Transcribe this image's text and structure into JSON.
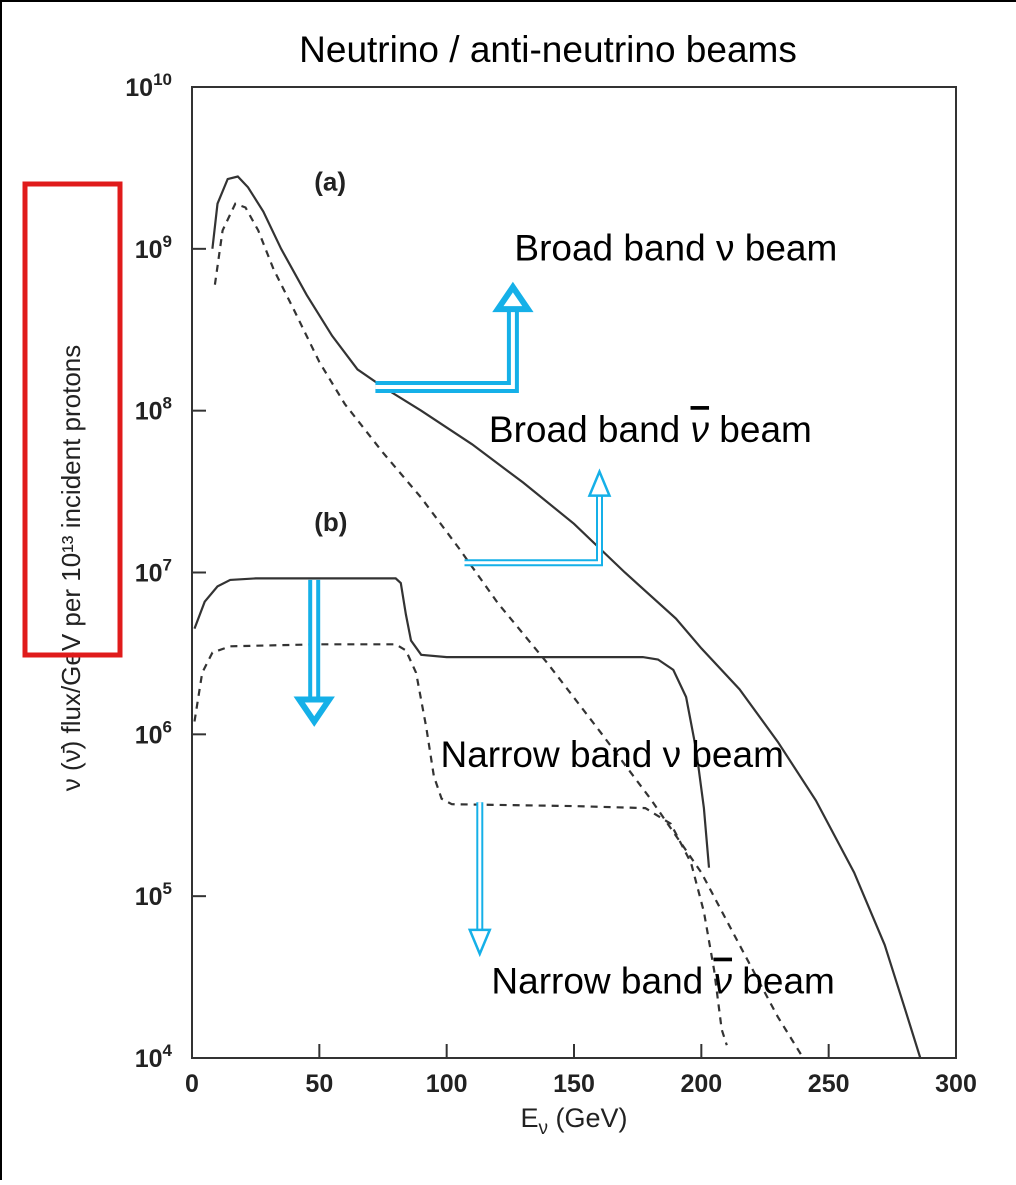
{
  "chart_data": {
    "type": "line",
    "title": "Neutrino / anti-neutrino beams",
    "xlabel": "E",
    "xlabel_sub": "ν",
    "xlabel_unit": " (GeV)",
    "ylabel": "ν (ν̄) flux/GeV per 10¹³ incident protons",
    "xlim": [
      0,
      300
    ],
    "ylim_log10": [
      4,
      10
    ],
    "yscale": "log",
    "grid": false,
    "x_ticks": [
      "0",
      "50",
      "100",
      "150",
      "200",
      "250",
      "300"
    ],
    "y_ticks": [
      {
        "base": "10",
        "exp": "4"
      },
      {
        "base": "10",
        "exp": "5"
      },
      {
        "base": "10",
        "exp": "6"
      },
      {
        "base": "10",
        "exp": "7"
      },
      {
        "base": "10",
        "exp": "8"
      },
      {
        "base": "10",
        "exp": "9"
      },
      {
        "base": "10",
        "exp": "10"
      }
    ],
    "panel_labels": [
      {
        "text": "(a)",
        "x": 48,
        "y": 2300000000.0
      },
      {
        "text": "(b)",
        "x": 48,
        "y": 18000000.0
      }
    ],
    "series": [
      {
        "style": "solid",
        "color": "#333333",
        "points": [
          [
            8,
            1000000000.0
          ],
          [
            10,
            1900000000.0
          ],
          [
            14,
            2700000000.0
          ],
          [
            18,
            2800000000.0
          ],
          [
            22,
            2400000000.0
          ],
          [
            28,
            1700000000.0
          ],
          [
            35,
            1000000000.0
          ],
          [
            45,
            520000000.0
          ],
          [
            55,
            290000000.0
          ],
          [
            65,
            180000000.0
          ],
          [
            75,
            140000000.0
          ],
          [
            90,
            100000000.0
          ],
          [
            110,
            62000000.0
          ],
          [
            130,
            36000000.0
          ],
          [
            150,
            20000000.0
          ],
          [
            170,
            10000000.0
          ],
          [
            190,
            5200000.0
          ],
          [
            200,
            3400000.0
          ],
          [
            215,
            1900000.0
          ],
          [
            230,
            900000.0
          ],
          [
            245,
            390000.0
          ],
          [
            260,
            140000.0
          ],
          [
            272,
            50000.0
          ],
          [
            280,
            20000.0
          ],
          [
            286,
            10000.0
          ]
        ]
      },
      {
        "style": "dashed",
        "color": "#333333",
        "points": [
          [
            9,
            600000000.0
          ],
          [
            12,
            1300000000.0
          ],
          [
            17,
            1900000000.0
          ],
          [
            21,
            1800000000.0
          ],
          [
            26,
            1300000000.0
          ],
          [
            32,
            750000000.0
          ],
          [
            40,
            420000000.0
          ],
          [
            50,
            200000000.0
          ],
          [
            60,
            110000000.0
          ],
          [
            75,
            55000000.0
          ],
          [
            90,
            29000000.0
          ],
          [
            105,
            14000000.0
          ],
          [
            120,
            6500000.0
          ],
          [
            140,
            2700000.0
          ],
          [
            160,
            1050000.0
          ],
          [
            180,
            400000.0
          ],
          [
            200,
            140000.0
          ],
          [
            215,
            50000.0
          ],
          [
            230,
            18000.0
          ],
          [
            240,
            10000.0
          ]
        ]
      },
      {
        "style": "solid",
        "color": "#333333",
        "points": [
          [
            1,
            4500000.0
          ],
          [
            5,
            6600000.0
          ],
          [
            10,
            8200000.0
          ],
          [
            15,
            9000000.0
          ],
          [
            25,
            9200000.0
          ],
          [
            50,
            9200000.0
          ],
          [
            80,
            9200000.0
          ],
          [
            82,
            8600000.0
          ],
          [
            84,
            5500000.0
          ],
          [
            86,
            3800000.0
          ],
          [
            90,
            3100000.0
          ],
          [
            100,
            3000000.0
          ],
          [
            150,
            3000000.0
          ],
          [
            177,
            3000000.0
          ],
          [
            183,
            2900000.0
          ],
          [
            189,
            2500000.0
          ],
          [
            194,
            1700000.0
          ],
          [
            198,
            800000.0
          ],
          [
            201,
            350000.0
          ],
          [
            203,
            150000.0
          ]
        ]
      },
      {
        "style": "dashed",
        "color": "#333333",
        "points": [
          [
            1,
            1200000.0
          ],
          [
            4,
            2400000.0
          ],
          [
            8,
            3200000.0
          ],
          [
            15,
            3500000.0
          ],
          [
            50,
            3600000.0
          ],
          [
            80,
            3600000.0
          ],
          [
            84,
            3300000.0
          ],
          [
            88,
            2400000.0
          ],
          [
            92,
            1100000.0
          ],
          [
            95,
            550000.0
          ],
          [
            98,
            400000.0
          ],
          [
            102,
            370000.0
          ],
          [
            150,
            360000.0
          ],
          [
            178,
            350000.0
          ],
          [
            188,
            280000.0
          ],
          [
            196,
            160000.0
          ],
          [
            201,
            80000.0
          ],
          [
            205,
            35000.0
          ],
          [
            208,
            15000.0
          ],
          [
            210,
            12000.0
          ]
        ]
      }
    ],
    "annotations": [
      {
        "label": "Broad band ν beam",
        "kind": "nu",
        "anchor": [
          190,
          850000000.0
        ],
        "arrow_path": [
          [
            72,
            140000000.0
          ],
          [
            126,
            140000000.0
          ],
          [
            126,
            580000000.0
          ]
        ],
        "arrow_style": "thick"
      },
      {
        "label": "Broad band ",
        "kind": "nubar",
        "tail": " beam",
        "anchor": [
          180,
          64000000.0
        ],
        "arrow_path": [
          [
            107,
            11500000.0
          ],
          [
            160,
            11500000.0
          ],
          [
            160,
            42000000.0
          ]
        ],
        "arrow_style": "thin"
      },
      {
        "label": "Narrow band ν beam",
        "kind": "nu",
        "anchor": [
          165,
          630000.0
        ],
        "arrow_path": [
          [
            48,
            9000000.0
          ],
          [
            48,
            1200000.0
          ]
        ],
        "arrow_style": "thick"
      },
      {
        "label": "Narrow band ",
        "kind": "nubar",
        "tail": " beam",
        "anchor": [
          185,
          25000.0
        ],
        "arrow_path": [
          [
            113,
            380000.0
          ],
          [
            113,
            44000.0
          ]
        ],
        "arrow_style": "thin"
      }
    ],
    "annotation_arrow_color": "#15b0e8",
    "highlight_box": {
      "target": "y-axis label",
      "color": "#e01b1b"
    }
  }
}
